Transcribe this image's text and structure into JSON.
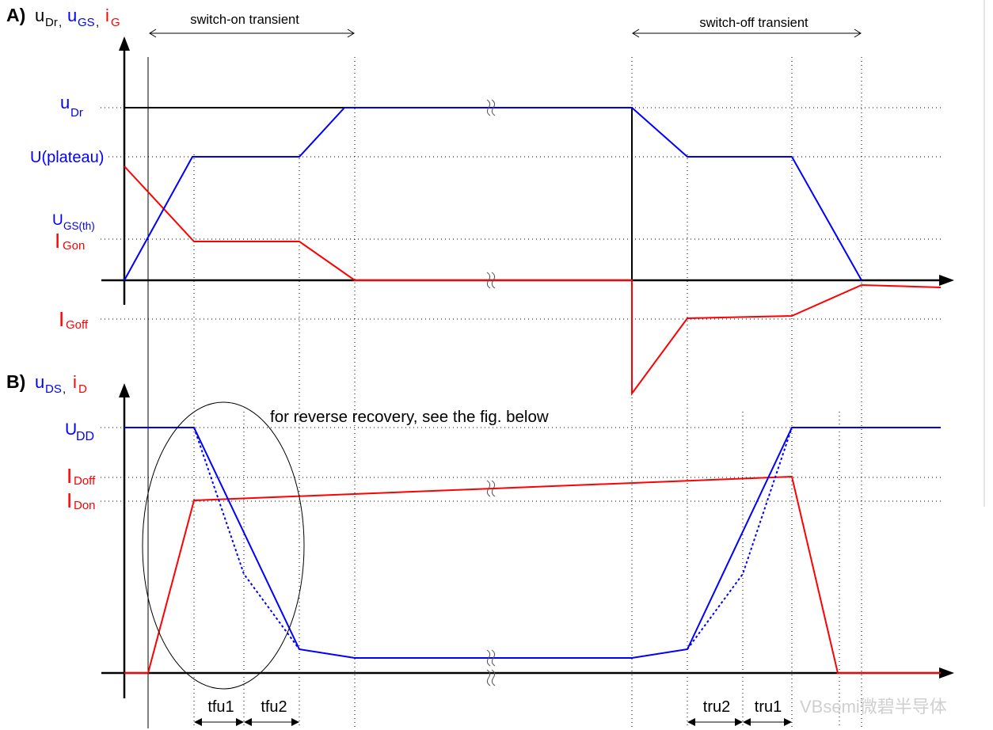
{
  "colors": {
    "voltage": "#0000ff",
    "current": "#ff0000",
    "drive": "#000000"
  },
  "panel_a": {
    "tag": "A)",
    "title": {
      "u_dr": {
        "main": "u",
        "sub": "Dr",
        "sep": ","
      },
      "u_gs": {
        "main": "u",
        "sub": "GS",
        "sep": ","
      },
      "i_g": {
        "main": "i",
        "sub": "G"
      }
    },
    "levels": {
      "u_dr": {
        "main": "u",
        "sub": "Dr"
      },
      "u_plateau": "U(plateau)",
      "u_gs_th": {
        "main": "U",
        "sub": "GS(th)"
      },
      "i_gon": {
        "main": "I",
        "sub": "Gon"
      },
      "i_goff": {
        "main": "I",
        "sub": "Goff"
      }
    },
    "switch_on_label": "switch-on transient",
    "switch_off_label": "switch-off transient"
  },
  "panel_b": {
    "tag": "B)",
    "title": {
      "u_ds": {
        "main": "u",
        "sub": "DS",
        "sep": ","
      },
      "i_d": {
        "main": "i",
        "sub": "D"
      }
    },
    "levels": {
      "u_dd": {
        "main": "U",
        "sub": "DD"
      },
      "i_doff": {
        "main": "I",
        "sub": "Doff"
      },
      "i_don": {
        "main": "I",
        "sub": "Don"
      }
    },
    "note": "for reverse recovery, see the fig. below",
    "intervals": [
      "tfu1",
      "tfu2",
      "tru2",
      "tru1"
    ]
  },
  "watermark": "VBsemi微碧半导体"
}
